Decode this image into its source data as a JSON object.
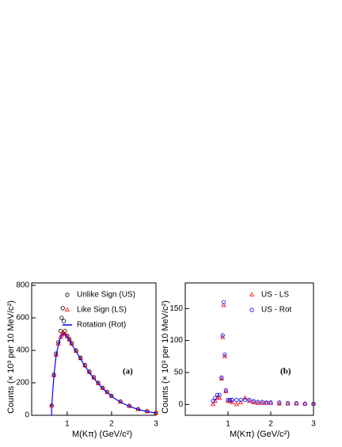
{
  "chart_data": [
    {
      "type": "scatter",
      "xlabel": "M(Kπ) (GeV/c²)",
      "ylabel": "Counts (× 10³ per 10 MeV/c²)",
      "annotation": "(a)",
      "xlim": [
        0.2,
        3
      ],
      "ylim": [
        0,
        815
      ],
      "xticks": [
        1,
        2,
        3
      ],
      "yticks": [
        0,
        200,
        400,
        600,
        800
      ],
      "legend": "upper right",
      "x": [
        0.65,
        0.7,
        0.75,
        0.8,
        0.85,
        0.875,
        0.9,
        0.925,
        0.95,
        1.0,
        1.05,
        1.1,
        1.2,
        1.3,
        1.4,
        1.5,
        1.6,
        1.7,
        1.8,
        1.9,
        2.0,
        2.2,
        2.4,
        2.6,
        2.8,
        3.0
      ],
      "series": [
        {
          "name": "Unlike Sign (US)",
          "color": "#000000",
          "marker": "circle",
          "values": [
            60,
            250,
            380,
            450,
            520,
            600,
            660,
            580,
            520,
            490,
            470,
            445,
            400,
            355,
            310,
            270,
            235,
            200,
            170,
            145,
            120,
            85,
            58,
            38,
            25,
            15
          ]
        },
        {
          "name": "Like Sign (LS)",
          "color": "#ff0000",
          "marker": "triangle",
          "values": [
            60,
            245,
            370,
            440,
            480,
            495,
            505,
            505,
            500,
            485,
            465,
            440,
            395,
            350,
            305,
            265,
            230,
            196,
            166,
            141,
            117,
            82,
            56,
            36,
            24,
            14
          ]
        },
        {
          "name": "Rotation (Rot)",
          "color": "#0000ff",
          "marker": "line",
          "values": [
            55,
            240,
            365,
            435,
            478,
            492,
            500,
            502,
            498,
            483,
            463,
            438,
            393,
            348,
            303,
            263,
            228,
            195,
            165,
            140,
            116,
            81,
            55,
            36,
            23,
            14
          ]
        }
      ]
    },
    {
      "type": "scatter",
      "xlabel": "M(Kπ) (GeV/c²)",
      "ylabel": "Counts (× 10³ per 10 MeV/c²)",
      "annotation": "(b)",
      "xlim": [
        0,
        3
      ],
      "ylim": [
        -17,
        190
      ],
      "xticks": [
        1,
        2,
        3
      ],
      "yticks": [
        0,
        50,
        100,
        150
      ],
      "legend": "upper right",
      "x": [
        0.65,
        0.7,
        0.75,
        0.8,
        0.85,
        0.875,
        0.9,
        0.925,
        0.95,
        1.0,
        1.05,
        1.1,
        1.2,
        1.3,
        1.4,
        1.5,
        1.6,
        1.7,
        1.8,
        1.9,
        2.0,
        2.2,
        2.4,
        2.6,
        2.8,
        3.0
      ],
      "series": [
        {
          "name": "US - LS",
          "color": "#ff0000",
          "marker": "triangle",
          "values": [
            0,
            5,
            10,
            10,
            40,
            105,
            155,
            75,
            20,
            5,
            5,
            3,
            0,
            3,
            10,
            5,
            3,
            2,
            2,
            2,
            2,
            1,
            1,
            1,
            1,
            1
          ]
        },
        {
          "name": "US - Rot",
          "color": "#0000ff",
          "marker": "circle",
          "values": [
            5,
            10,
            15,
            15,
            42,
            108,
            160,
            78,
            22,
            7,
            7,
            7,
            7,
            7,
            7,
            7,
            5,
            4,
            4,
            3,
            3,
            3,
            2,
            2,
            1,
            1
          ]
        }
      ]
    }
  ]
}
